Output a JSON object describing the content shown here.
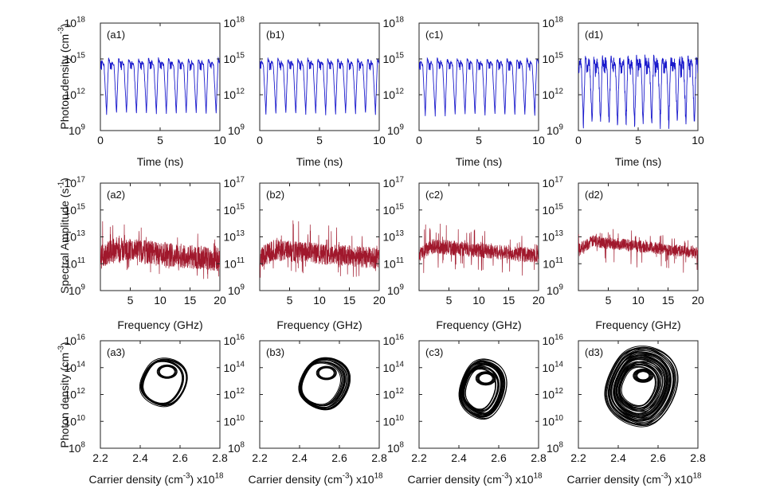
{
  "figure": {
    "row_ylabels": [
      "Photon density (cm",
      "Spectral Amplitude (s",
      "Photon density (cm"
    ],
    "row_ylabel_sups": [
      "-3",
      "-1",
      "-3"
    ],
    "row_ylabel_close": [
      ")",
      ")",
      ")"
    ]
  },
  "chart_data": [
    {
      "type": "line",
      "label": "(a1)",
      "xlabel": "Time (ns)",
      "xticks": [
        "0",
        "5",
        "10"
      ],
      "yticks": [
        "10",
        "10",
        "10",
        "10"
      ],
      "ytick_exps": [
        "9",
        "12",
        "15",
        "18"
      ],
      "xlim": [
        0,
        10
      ],
      "ylog": true,
      "ylim_exp": [
        9,
        18
      ],
      "color": "#1a1acc",
      "series": [
        {
          "peaks": 12,
          "high_exp": 15,
          "low_exp": 10.4,
          "mid_exp": 12.8
        }
      ]
    },
    {
      "type": "line",
      "label": "(b1)",
      "xlabel": "Time (ns)",
      "xticks": [
        "0",
        "5",
        "10"
      ],
      "yticks": [
        "10",
        "10",
        "10",
        "10"
      ],
      "ytick_exps": [
        "9",
        "12",
        "15",
        "18"
      ],
      "xlim": [
        0,
        10
      ],
      "ylog": true,
      "ylim_exp": [
        9,
        18
      ],
      "color": "#1a1acc",
      "series": [
        {
          "peaks": 12,
          "high_exp": 15,
          "low_exp": 10.4,
          "mid_exp": 12.8
        }
      ]
    },
    {
      "type": "line",
      "label": "(c1)",
      "xlabel": "Time (ns)",
      "xticks": [
        "0",
        "5",
        "10"
      ],
      "yticks": [
        "10",
        "10",
        "10",
        "10"
      ],
      "ytick_exps": [
        "9",
        "12",
        "15",
        "18"
      ],
      "xlim": [
        0,
        10
      ],
      "ylog": true,
      "ylim_exp": [
        9,
        18
      ],
      "color": "#1a1acc",
      "series": [
        {
          "peaks": 12,
          "high_exp": 15,
          "low_exp": 10.3,
          "mid_exp": 12.8
        }
      ]
    },
    {
      "type": "line",
      "label": "(d1)",
      "xlabel": "Time (ns)",
      "xticks": [
        "0",
        "5",
        "10"
      ],
      "yticks": [
        "10",
        "10",
        "10",
        "10"
      ],
      "ytick_exps": [
        "9",
        "12",
        "15",
        "18"
      ],
      "xlim": [
        0,
        10
      ],
      "ylog": true,
      "ylim_exp": [
        9,
        18
      ],
      "color": "#1a1acc",
      "series": [
        {
          "peaks": 14,
          "high_exp": 15,
          "low_exp": 9.4,
          "mid_exp": 12.5
        }
      ]
    },
    {
      "type": "line",
      "label": "(a2)",
      "xlabel": "Frequency (GHz)",
      "xticks": [
        "5",
        "10",
        "15",
        "20"
      ],
      "yticks": [
        "10",
        "10",
        "10",
        "10",
        "10"
      ],
      "ytick_exps": [
        "9",
        "11",
        "13",
        "15",
        "17"
      ],
      "xlim": [
        0,
        20
      ],
      "ylog": true,
      "ylim_exp": [
        9,
        17
      ],
      "color": "#a0182c",
      "series": [
        {
          "level_start_exp": 12.2,
          "level_end_exp": 11.3,
          "spread_exp": 0.9,
          "spike_exp": 14.6
        }
      ]
    },
    {
      "type": "line",
      "label": "(b2)",
      "xlabel": "Frequency (GHz)",
      "xticks": [
        "5",
        "10",
        "15",
        "20"
      ],
      "yticks": [
        "10",
        "10",
        "10",
        "10",
        "10"
      ],
      "ytick_exps": [
        "9",
        "11",
        "13",
        "15",
        "17"
      ],
      "xlim": [
        0,
        20
      ],
      "ylog": true,
      "ylim_exp": [
        9,
        17
      ],
      "color": "#a0182c",
      "series": [
        {
          "level_start_exp": 12.1,
          "level_end_exp": 11.4,
          "spread_exp": 0.8,
          "spike_exp": 14.8
        }
      ]
    },
    {
      "type": "line",
      "label": "(c2)",
      "xlabel": "Frequency (GHz)",
      "xticks": [
        "5",
        "10",
        "15",
        "20"
      ],
      "yticks": [
        "10",
        "10",
        "10",
        "10",
        "10"
      ],
      "ytick_exps": [
        "9",
        "11",
        "13",
        "15",
        "17"
      ],
      "xlim": [
        0,
        20
      ],
      "ylog": true,
      "ylim_exp": [
        9,
        17
      ],
      "color": "#a0182c",
      "series": [
        {
          "level_start_exp": 12.4,
          "level_end_exp": 11.6,
          "spread_exp": 0.55,
          "spike_exp": 14.2
        }
      ]
    },
    {
      "type": "line",
      "label": "(d2)",
      "xlabel": "Frequency (GHz)",
      "xticks": [
        "5",
        "10",
        "15",
        "20"
      ],
      "yticks": [
        "10",
        "10",
        "10",
        "10",
        "10"
      ],
      "ytick_exps": [
        "9",
        "11",
        "13",
        "15",
        "17"
      ],
      "xlim": [
        0,
        20
      ],
      "ylog": true,
      "ylim_exp": [
        9,
        17
      ],
      "color": "#a0182c",
      "series": [
        {
          "level_start_exp": 12.8,
          "level_end_exp": 11.8,
          "spread_exp": 0.45,
          "spike_exp": 13.8
        }
      ]
    },
    {
      "type": "scatter",
      "label": "(a3)",
      "xlabel": "Carrier density (cm",
      "xlabel_sup": "-3",
      "xlabel_tail": ") x10",
      "xlabel_tail_sup": "18",
      "xticks": [
        "2.2",
        "2.4",
        "2.6",
        "2.8"
      ],
      "yticks": [
        "10",
        "10",
        "10",
        "10",
        "10"
      ],
      "ytick_exps": [
        "8",
        "10",
        "12",
        "14",
        "16"
      ],
      "xlim": [
        2.2,
        2.8
      ],
      "ylog": true,
      "ylim_exp": [
        8,
        16
      ],
      "color": "#000000",
      "series": [
        {
          "cx": 2.5,
          "cy_exp": 12.9,
          "rx": 0.13,
          "ry_exp": 2.1,
          "loops": 8,
          "fill": 0.25
        }
      ]
    },
    {
      "type": "scatter",
      "label": "(b3)",
      "xlabel": "Carrier density (cm",
      "xlabel_sup": "-3",
      "xlabel_tail": ") x10",
      "xlabel_tail_sup": "18",
      "xticks": [
        "2.2",
        "2.4",
        "2.6",
        "2.8"
      ],
      "yticks": [
        "10",
        "10",
        "10",
        "10",
        "10"
      ],
      "ytick_exps": [
        "8",
        "10",
        "12",
        "14",
        "16"
      ],
      "xlim": [
        2.2,
        2.8
      ],
      "ylog": true,
      "ylim_exp": [
        8,
        16
      ],
      "color": "#000000",
      "series": [
        {
          "cx": 2.5,
          "cy_exp": 12.8,
          "rx": 0.14,
          "ry_exp": 2.3,
          "loops": 14,
          "fill": 0.35
        }
      ]
    },
    {
      "type": "scatter",
      "label": "(c3)",
      "xlabel": "Carrier density (cm",
      "xlabel_sup": "-3",
      "xlabel_tail": ") x10",
      "xlabel_tail_sup": "18",
      "xticks": [
        "2.2",
        "2.4",
        "2.6",
        "2.8"
      ],
      "yticks": [
        "10",
        "10",
        "10",
        "10",
        "10"
      ],
      "ytick_exps": [
        "8",
        "10",
        "12",
        "14",
        "16"
      ],
      "xlim": [
        2.2,
        2.8
      ],
      "ylog": true,
      "ylim_exp": [
        8,
        16
      ],
      "color": "#000000",
      "series": [
        {
          "cx": 2.5,
          "cy_exp": 12.4,
          "rx": 0.13,
          "ry_exp": 2.6,
          "loops": 22,
          "fill": 0.6
        }
      ]
    },
    {
      "type": "scatter",
      "label": "(d3)",
      "xlabel": "Carrier density (cm",
      "xlabel_sup": "-3",
      "xlabel_tail": ") x10",
      "xlabel_tail_sup": "18",
      "xticks": [
        "2.2",
        "2.4",
        "2.6",
        "2.8"
      ],
      "yticks": [
        "10",
        "10",
        "10",
        "10",
        "10"
      ],
      "ytick_exps": [
        "8",
        "10",
        "12",
        "14",
        "16"
      ],
      "xlim": [
        2.2,
        2.8
      ],
      "ylog": true,
      "ylim_exp": [
        8,
        16
      ],
      "color": "#000000",
      "series": [
        {
          "cx": 2.49,
          "cy_exp": 12.6,
          "rx": 0.2,
          "ry_exp": 3.5,
          "loops": 36,
          "fill": 0.95
        }
      ]
    }
  ]
}
